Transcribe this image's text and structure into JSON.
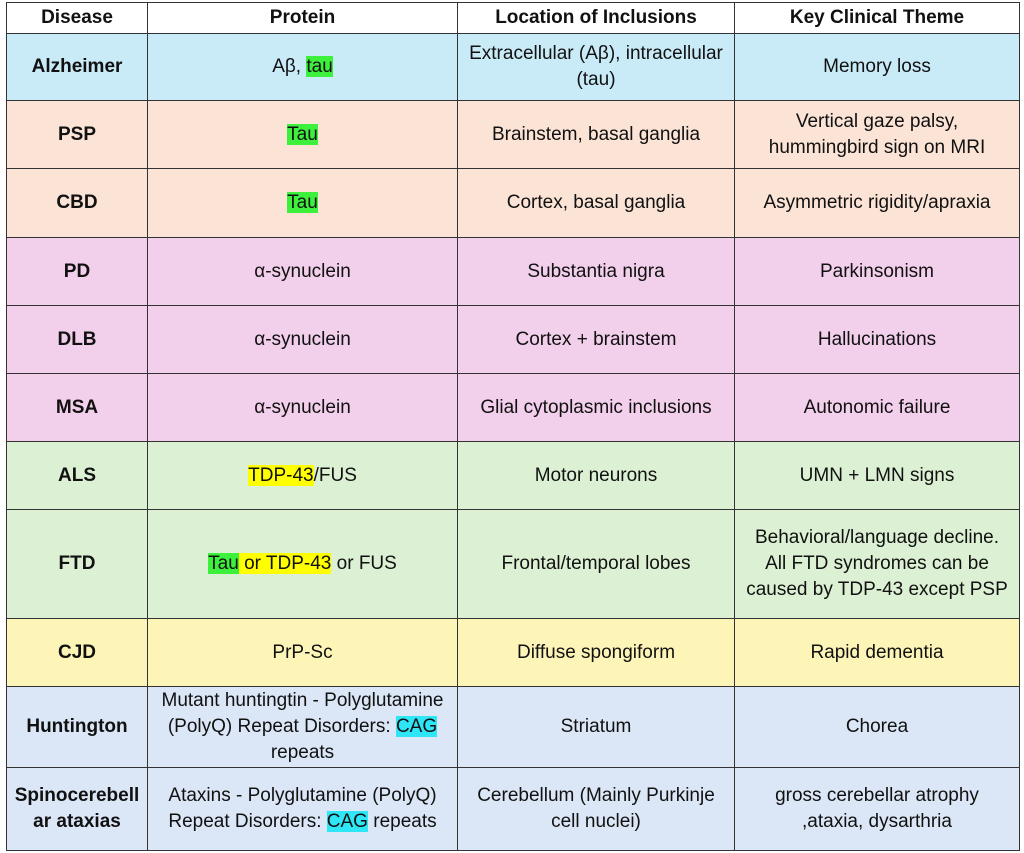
{
  "table": {
    "header": [
      "Disease",
      "Protein",
      "Location of Inclusions",
      "Key Clinical Theme"
    ],
    "rows": [
      {
        "color": "#c9eaf7",
        "cells": [
          "Alzheimer",
          [
            {
              "text": "Aβ, "
            },
            {
              "text": "tau",
              "highlight": "#3cf03c"
            }
          ],
          "Extracellular (Aβ), intracellular (tau)",
          "Memory loss"
        ]
      },
      {
        "color": "#fbe3d6",
        "cells": [
          "PSP",
          [
            {
              "text": "Tau",
              "highlight": "#3cf03c"
            }
          ],
          "Brainstem, basal ganglia",
          "Vertical gaze palsy, hummingbird sign on MRI"
        ]
      },
      {
        "color": "#fbe3d6",
        "cells": [
          "CBD",
          [
            {
              "text": "Tau",
              "highlight": "#3cf03c"
            }
          ],
          "Cortex, basal ganglia",
          "Asymmetric rigidity/apraxia"
        ]
      },
      {
        "color": "#f2cfeb",
        "cells": [
          "PD",
          "α-synuclein",
          "Substantia nigra",
          "Parkinsonism"
        ]
      },
      {
        "color": "#f2cfeb",
        "cells": [
          "DLB",
          "α-synuclein",
          "Cortex + brainstem",
          "Hallucinations"
        ]
      },
      {
        "color": "#f2cfeb",
        "cells": [
          "MSA",
          "α-synuclein",
          "Glial cytoplasmic inclusions",
          "Autonomic failure"
        ]
      },
      {
        "color": "#dcf0d3",
        "cells": [
          "ALS",
          [
            {
              "text": "TDP-43",
              "highlight": "#ffff00"
            },
            {
              "text": "/FUS"
            }
          ],
          "Motor neurons",
          "UMN + LMN signs"
        ]
      },
      {
        "color": "#dcf0d3",
        "cells": [
          "FTD",
          [
            {
              "text": "Tau",
              "highlight": "#3cf03c"
            },
            {
              "text": " or TDP-43",
              "highlight": "#ffff00"
            },
            {
              "text": " or FUS"
            }
          ],
          "Frontal/temporal lobes",
          "Behavioral/language decline. All FTD syndromes can be caused by TDP-43 except PSP"
        ]
      },
      {
        "color": "#fdf5b8",
        "cells": [
          "CJD",
          "PrP-Sc",
          "Diffuse spongiform",
          "Rapid dementia"
        ]
      },
      {
        "color": "#dbe7f6",
        "cells": [
          "Huntington",
          [
            {
              "text": "Mutant huntingtin - Polyglutamine (PolyQ) Repeat Disorders: "
            },
            {
              "text": "CAG",
              "highlight": "#2ee6f5"
            },
            {
              "text": " repeats"
            }
          ],
          "Striatum",
          "Chorea"
        ]
      },
      {
        "color": "#dbe7f6",
        "cells": [
          "Spinocerebellar ataxias",
          [
            {
              "text": "Ataxins - Polyglutamine (PolyQ) Repeat Disorders: "
            },
            {
              "text": "CAG",
              "highlight": "#2ee6f5"
            },
            {
              "text": " repeats"
            }
          ],
          "Cerebellum (Mainly Purkinje cell nuclei)",
          "gross cerebellar atrophy ,ataxia, dysarthria"
        ]
      }
    ]
  }
}
